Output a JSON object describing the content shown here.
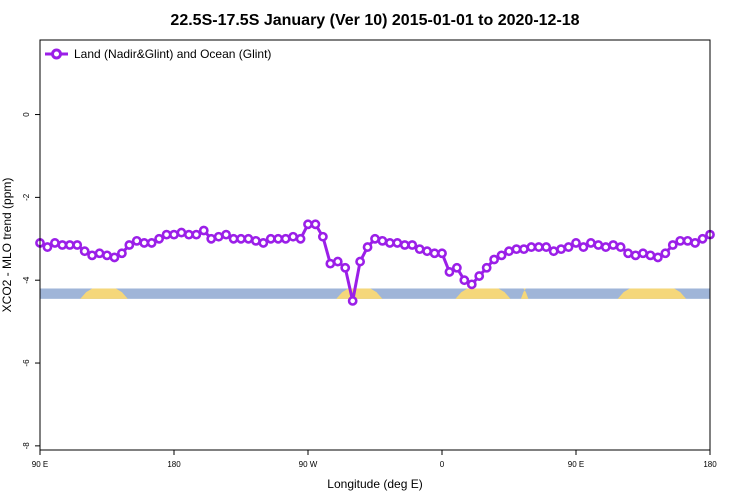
{
  "chart_data": {
    "type": "line",
    "title": "22.5S-17.5S January (Ver 10)   2015-01-01 to 2020-12-18",
    "xlabel": "Longitude (deg E)",
    "ylabel": "XCO2 - MLO trend (ppm)",
    "xlim": [
      90,
      540
    ],
    "ylim": [
      -8.1,
      1.8
    ],
    "x_ticks": [
      {
        "value": 90,
        "label": "90 E"
      },
      {
        "value": 180,
        "label": "180"
      },
      {
        "value": 270,
        "label": "90 W"
      },
      {
        "value": 360,
        "label": "0"
      },
      {
        "value": 450,
        "label": "90 E"
      },
      {
        "value": 540,
        "label": "180"
      }
    ],
    "y_ticks": [
      {
        "value": 0,
        "label": "0"
      },
      {
        "value": -2,
        "label": "-2"
      },
      {
        "value": -4,
        "label": "-4"
      },
      {
        "value": -6,
        "label": "-6"
      },
      {
        "value": -8,
        "label": "-8"
      }
    ],
    "legend": {
      "position": "top-left"
    },
    "series": [
      {
        "name": "Land (Nadir&Glint) and Ocean (Glint)",
        "color": "#9b1fe8",
        "x": [
          90,
          95,
          100,
          105,
          110,
          115,
          120,
          125,
          130,
          135,
          140,
          145,
          150,
          155,
          160,
          165,
          170,
          175,
          180,
          185,
          190,
          195,
          200,
          205,
          210,
          215,
          220,
          225,
          230,
          235,
          240,
          245,
          250,
          255,
          260,
          265,
          270,
          275,
          280,
          285,
          290,
          295,
          300,
          305,
          310,
          315,
          320,
          325,
          330,
          335,
          340,
          345,
          350,
          355,
          360,
          365,
          370,
          375,
          380,
          385,
          390,
          395,
          400,
          405,
          410,
          415,
          420,
          425,
          430,
          435,
          440,
          445,
          450,
          455,
          460,
          465,
          470,
          475,
          480,
          485,
          490,
          495,
          500,
          505,
          510,
          515,
          520,
          525,
          530,
          535,
          540
        ],
        "y": [
          -3.1,
          -3.2,
          -3.1,
          -3.15,
          -3.15,
          -3.15,
          -3.3,
          -3.4,
          -3.35,
          -3.4,
          -3.45,
          -3.35,
          -3.15,
          -3.05,
          -3.1,
          -3.1,
          -3.0,
          -2.9,
          -2.9,
          -2.85,
          -2.9,
          -2.9,
          -2.8,
          -3.0,
          -2.95,
          -2.9,
          -3.0,
          -3.0,
          -3.0,
          -3.05,
          -3.1,
          -3.0,
          -3.0,
          -3.0,
          -2.95,
          -3.0,
          -2.65,
          -2.65,
          -2.95,
          -3.6,
          -3.55,
          -3.7,
          -4.5,
          -3.55,
          -3.2,
          -3.0,
          -3.05,
          -3.1,
          -3.1,
          -3.15,
          -3.15,
          -3.25,
          -3.3,
          -3.35,
          -3.35,
          -3.8,
          -3.7,
          -4.0,
          -4.1,
          -3.9,
          -3.7,
          -3.5,
          -3.4,
          -3.3,
          -3.25,
          -3.25,
          -3.2,
          -3.2,
          -3.2,
          -3.3,
          -3.25,
          -3.2,
          -3.1,
          -3.2,
          -3.1,
          -3.15,
          -3.2,
          -3.15,
          -3.2,
          -3.35,
          -3.4,
          -3.35,
          -3.4,
          -3.45,
          -3.35,
          -3.15,
          -3.05,
          -3.05,
          -3.1,
          -3.0,
          -2.9
        ]
      }
    ],
    "terrain_band": {
      "y_range": [
        -4.45,
        -4.2
      ],
      "ocean_color": "#9fb5d8",
      "land_color": "#f5d77a",
      "land_segments": [
        [
          117,
          149
        ],
        [
          289,
          320
        ],
        [
          369,
          406
        ],
        [
          413,
          418
        ],
        [
          478,
          524
        ]
      ]
    }
  }
}
